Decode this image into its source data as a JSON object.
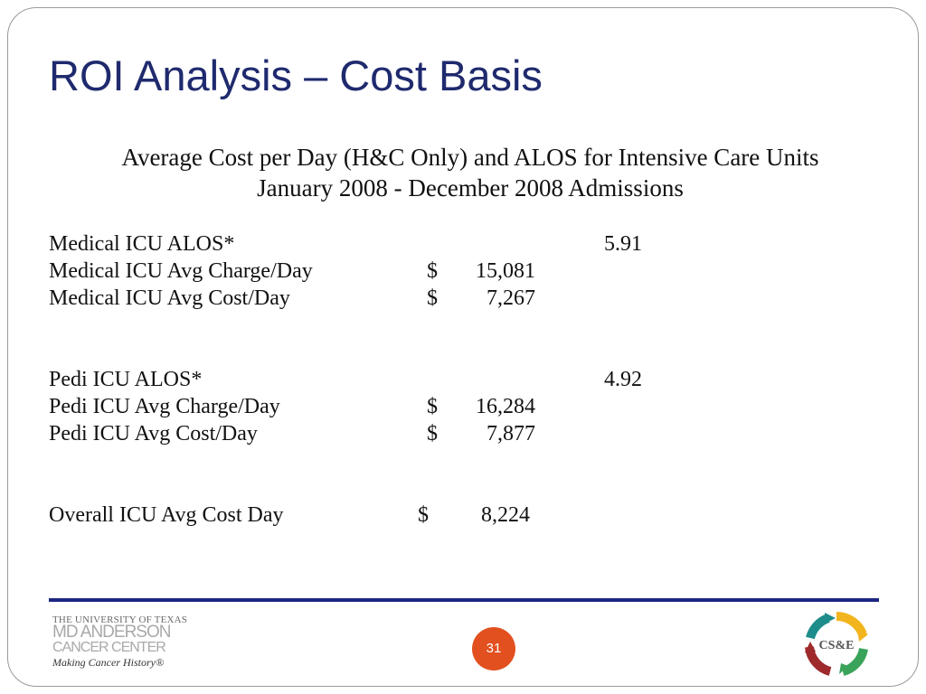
{
  "title": "ROI Analysis – Cost Basis",
  "subtitle": {
    "line1": "Average Cost per Day (H&C Only) and ALOS for Intensive Care Units",
    "line2": "January 2008 - December 2008 Admissions"
  },
  "medical": {
    "alos_label": "Medical ICU ALOS*",
    "alos_value": "5.91",
    "charge_label": "Medical ICU Avg Charge/Day",
    "charge_currency": "$",
    "charge_value": "15,081",
    "cost_label": "Medical ICU Avg Cost/Day",
    "cost_currency": "$",
    "cost_value": "7,267"
  },
  "pedi": {
    "alos_label": "Pedi ICU ALOS*",
    "alos_value": "4.92",
    "charge_label": "Pedi ICU Avg Charge/Day",
    "charge_currency": "$",
    "charge_value": "16,284",
    "cost_label": "Pedi ICU Avg Cost/Day",
    "cost_currency": "$",
    "cost_value": "7,877"
  },
  "overall": {
    "label": "Overall ICU Avg Cost Day",
    "currency": "$",
    "value": "8,224"
  },
  "footer": {
    "logo": {
      "line1": "THE UNIVERSITY OF TEXAS",
      "line2": "MD ANDERSON",
      "line3": "CANCER CENTER",
      "tagline": "Making Cancer History®"
    },
    "page_number": "31",
    "cse_logo_text": "CS&E"
  },
  "colors": {
    "title": "#1f2a6e",
    "rule": "#1c2683",
    "page_badge": "#e2501f",
    "cse_yellow": "#f2b51e",
    "cse_green": "#3aa35a",
    "cse_teal": "#1d8c8a",
    "cse_red": "#9e2a2b"
  }
}
